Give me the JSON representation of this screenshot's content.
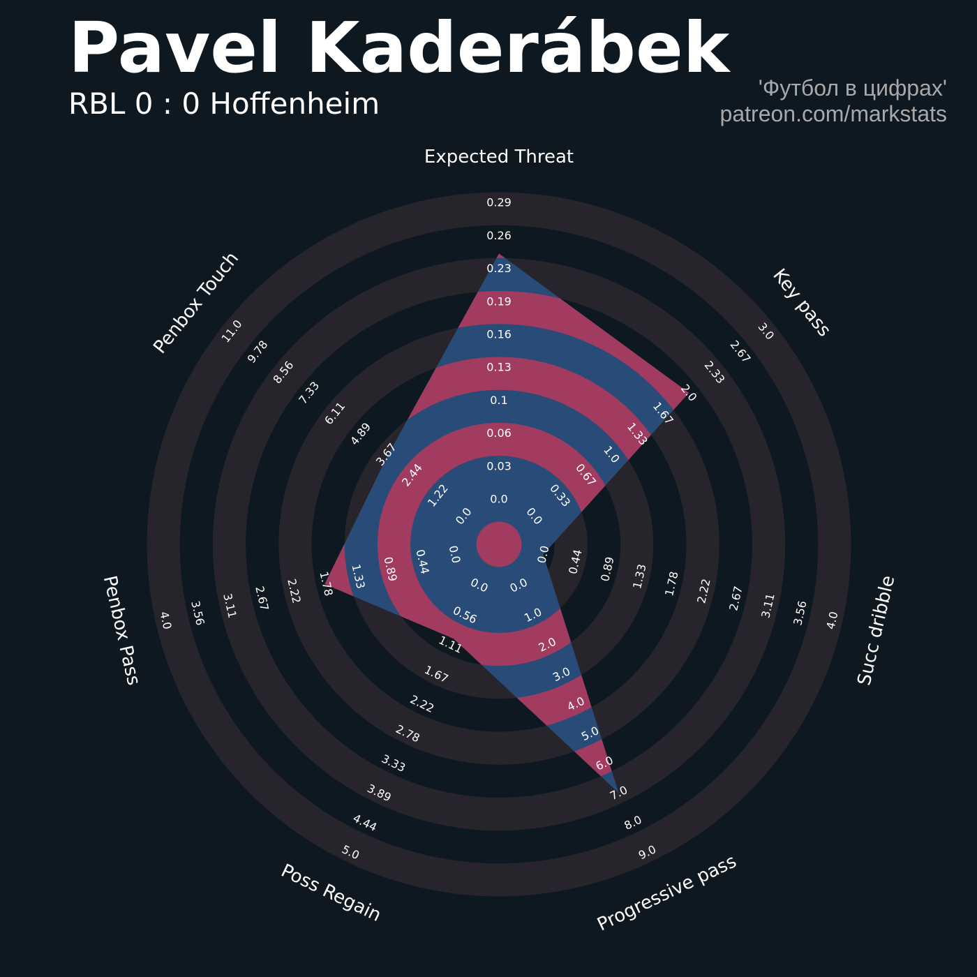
{
  "header": {
    "title": "Pavel Kaderábek",
    "subtitle": "RBL 0 : 0 Hoffenheim",
    "credit_line1": "'Футбол в цифрах'",
    "credit_line2": "patreon.com/markstats"
  },
  "colors": {
    "background": "#0e1820",
    "ring_dark": "#28242c",
    "radar_blue": "#284b77",
    "radar_pink": "#a23b60",
    "text": "#ffffff",
    "credit": "#a9a9a9"
  },
  "chart_data": {
    "type": "radar",
    "title": "Pavel Kaderábek",
    "subtitle": "RBL 0 : 0 Hoffenheim",
    "params": [
      "Expected Threat",
      "Key pass",
      "Succ dribble",
      "Progressive pass",
      "Poss Regain",
      "Penbox Pass",
      "Penbox Touch"
    ],
    "values": [
      0.24,
      2.0,
      0.0,
      7.0,
      1.0,
      1.8,
      3.6
    ],
    "ranges": [
      [
        0.0,
        0.29
      ],
      [
        0.0,
        3.0
      ],
      [
        0.0,
        4.0
      ],
      [
        0.0,
        9.0
      ],
      [
        0.0,
        5.0
      ],
      [
        0.0,
        4.0
      ],
      [
        0.0,
        11.0
      ]
    ],
    "tick_labels": [
      [
        "0.0",
        "0.03",
        "0.06",
        "0.1",
        "0.13",
        "0.16",
        "0.19",
        "0.23",
        "0.26",
        "0.29"
      ],
      [
        "0.0",
        "0.33",
        "0.67",
        "1.0",
        "1.33",
        "1.67",
        "2.0",
        "2.33",
        "2.67",
        "3.0"
      ],
      [
        "0.0",
        "0.44",
        "0.89",
        "1.33",
        "1.78",
        "2.22",
        "2.67",
        "3.11",
        "3.56",
        "4.0"
      ],
      [
        "0.0",
        "1.0",
        "2.0",
        "3.0",
        "4.0",
        "5.0",
        "6.0",
        "7.0",
        "8.0",
        "9.0"
      ],
      [
        "0.0",
        "0.56",
        "1.11",
        "1.67",
        "2.22",
        "2.78",
        "3.33",
        "3.89",
        "4.44",
        "5.0"
      ],
      [
        "0.0",
        "0.44",
        "0.89",
        "1.33",
        "1.78",
        "2.22",
        "2.67",
        "3.11",
        "3.56",
        "4.0"
      ],
      [
        "0.0",
        "1.22",
        "2.44",
        "3.67",
        "4.89",
        "6.11",
        "7.33",
        "8.56",
        "9.78",
        "11.0"
      ]
    ],
    "legend": "none",
    "grid": false
  }
}
